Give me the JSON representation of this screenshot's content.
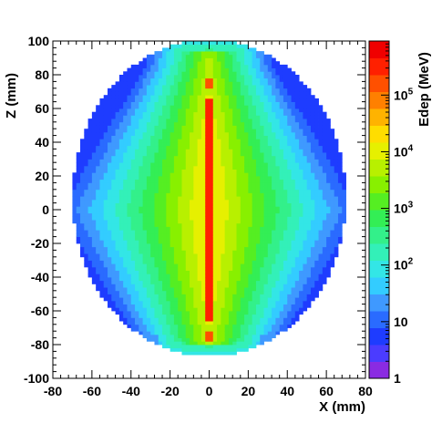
{
  "chart_data": {
    "type": "heatmap",
    "xlabel": "X (mm)",
    "ylabel": "Z (mm)",
    "zlabel": "Edep (MeV)",
    "xlim": [
      -80,
      80
    ],
    "ylim": [
      -100,
      100
    ],
    "x_ticks": [
      "-80",
      "-60",
      "-40",
      "-20",
      "0",
      "20",
      "40",
      "60",
      "80"
    ],
    "y_ticks": [
      "-100",
      "-80",
      "-60",
      "-40",
      "-20",
      "0",
      "20",
      "40",
      "60",
      "80",
      "100"
    ],
    "z_scale": "log",
    "zlim": [
      1,
      900000
    ],
    "z_ticks": [
      {
        "value": 1,
        "base": "1",
        "exp": ""
      },
      {
        "value": 10,
        "base": "10",
        "exp": ""
      },
      {
        "value": 100,
        "base": "10",
        "exp": "2"
      },
      {
        "value": 1000,
        "base": "10",
        "exp": "3"
      },
      {
        "value": 10000,
        "base": "10",
        "exp": "4"
      },
      {
        "value": 100000,
        "base": "10",
        "exp": "5"
      }
    ],
    "palette": [
      "#8a2be2",
      "#4b3cff",
      "#1e3cff",
      "#2a6bff",
      "#3f99ff",
      "#33ccff",
      "#33e6e6",
      "#33f0b8",
      "#33f08a",
      "#33ee55",
      "#55ee22",
      "#88f000",
      "#b8f000",
      "#e6f000",
      "#ffdd00",
      "#ffb300",
      "#ff8000",
      "#ff5000",
      "#ff2000",
      "#f00000"
    ],
    "grid": false
  }
}
